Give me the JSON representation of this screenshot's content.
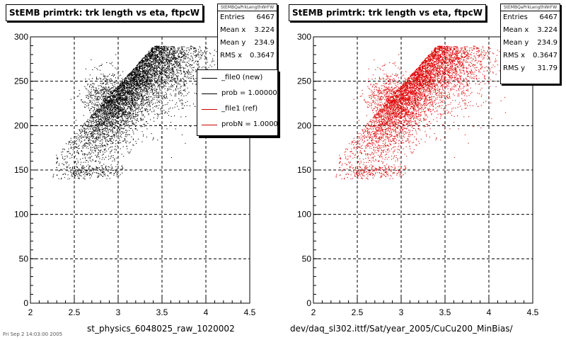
{
  "footer_text": "Fri Sep 2 14:03:00 2005",
  "chart_data": [
    {
      "type": "scatter",
      "title": "StEMB primtrk: trk length vs eta, ftpcW",
      "xlabel": "st_physics_6048025_raw_1020002",
      "ylabel": "",
      "xlim": [
        2,
        4.5
      ],
      "ylim": [
        0,
        300
      ],
      "xticks": [
        "2",
        "2.5",
        "3",
        "3.5",
        "4",
        "4.5"
      ],
      "yticks": [
        "0",
        "50",
        "100",
        "150",
        "200",
        "250",
        "300"
      ],
      "grid": true,
      "marker_color": "#000000",
      "stats": {
        "name": "StEMBQaPrkLengthWrFW",
        "entries_label": "Entries",
        "entries": "6467",
        "meanx_label": "Mean x",
        "meanx": "3.224",
        "meany_label": "Mean y",
        "meany": "234.9",
        "rmsx_label": "RMS x",
        "rmsx": "0.3647"
      },
      "legend": {
        "placement": "top-right",
        "entries": [
          {
            "label": "_file0 (new)",
            "color": "#000000"
          },
          {
            "label": "prob = 1.000000",
            "color": "#000000"
          },
          {
            "label": "_file1 (ref)",
            "color": "#cc0000"
          },
          {
            "label": "probN = 1.000000",
            "color": "#cc0000"
          }
        ]
      }
    },
    {
      "type": "scatter",
      "title": "StEMB primtrk: trk length vs eta, ftpcW",
      "xlabel": "dev/daq_sl302.ittf/Sat/year_2005/CuCu200_MinBias/",
      "ylabel": "",
      "xlim": [
        2,
        4.5
      ],
      "ylim": [
        0,
        300
      ],
      "xticks": [
        "2",
        "2.5",
        "3",
        "3.5",
        "4",
        "4.5"
      ],
      "yticks": [
        "0",
        "50",
        "100",
        "150",
        "200",
        "250",
        "300"
      ],
      "grid": true,
      "marker_color": "#dd0000",
      "stats": {
        "name": "StEMBQaPrkLengthWrFW",
        "entries_label": "Entries",
        "entries": "6467",
        "meanx_label": "Mean x",
        "meanx": "3.224",
        "meany_label": "Mean y",
        "meany": "234.9",
        "rmsx_label": "RMS x",
        "rmsx": "0.3647",
        "rmsy_label": "RMS y",
        "rmsy": "31.79"
      }
    }
  ]
}
